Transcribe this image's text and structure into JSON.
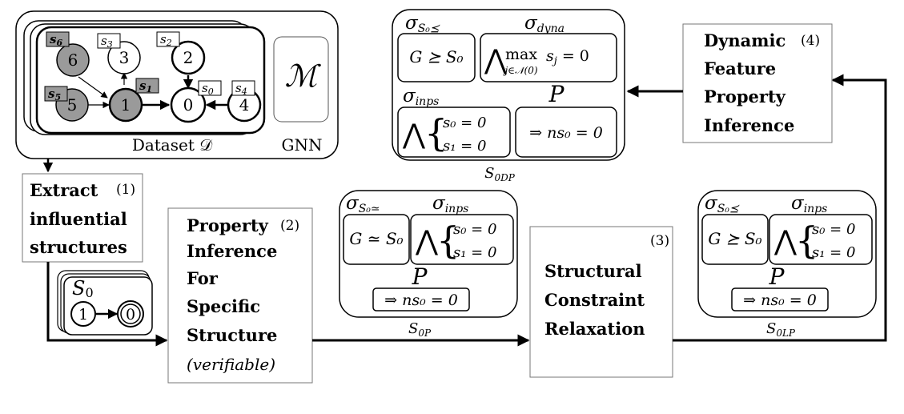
{
  "dataset": {
    "caption": "Dataset 𝒟",
    "model_symbol": "ℳ",
    "model_label": "GNN",
    "nodes": [
      {
        "id": "n6",
        "label": "6",
        "tag": "s6",
        "shaded": true
      },
      {
        "id": "n3",
        "label": "3",
        "tag": "s3",
        "shaded": false
      },
      {
        "id": "n2",
        "label": "2",
        "tag": "s2",
        "shaded": false
      },
      {
        "id": "n5",
        "label": "5",
        "tag": "s5",
        "shaded": true
      },
      {
        "id": "n1",
        "label": "1",
        "tag": "s1",
        "shaded": true
      },
      {
        "id": "n0",
        "label": "0",
        "tag": "s0",
        "shaded": false
      },
      {
        "id": "n4",
        "label": "4",
        "tag": "s4",
        "shaded": false
      }
    ]
  },
  "steps": {
    "extract": {
      "lines": [
        "Extract",
        "influential",
        "structures"
      ],
      "num": "(1)"
    },
    "specific": {
      "lines": [
        "Property",
        "Inference",
        "For",
        "Specific",
        "Structure"
      ],
      "italic": "(verifiable)",
      "num": "(2)"
    },
    "relax": {
      "lines": [
        "Structural",
        "Constraint",
        "Relaxation"
      ],
      "num": "(3)"
    },
    "dynamic": {
      "lines": [
        "Dynamic",
        "Feature",
        "Property",
        "Inference"
      ],
      "num": "(4)"
    }
  },
  "structure": {
    "label": "S",
    "sub": "0",
    "nodes": [
      "1",
      "0"
    ]
  },
  "props": {
    "p": {
      "sigma_struct": "σ",
      "sigma_struct_sub": "S₀≃",
      "sigma_inps": "σ",
      "sigma_inps_sub": "inps",
      "struct_formula": "G ≃ S₀",
      "inps_lines": [
        "s₀ = 0",
        "s₁ = 0"
      ],
      "p_label": "P",
      "p_formula": "⇒ ns₀ = 0",
      "caption": "S",
      "caption_sub": "0P"
    },
    "lp": {
      "sigma_struct": "σ",
      "sigma_struct_sub": "S₀⪯",
      "sigma_inps": "σ",
      "sigma_inps_sub": "inps",
      "struct_formula": "G ⪰ S₀",
      "inps_lines": [
        "s₀ = 0",
        "s₁ = 0"
      ],
      "p_label": "P",
      "p_formula": "⇒ ns₀ = 0",
      "caption": "S",
      "caption_sub": "0LP"
    },
    "dp": {
      "sigma_struct": "σ",
      "sigma_struct_sub": "S₀⪯",
      "sigma_dyna": "σ",
      "sigma_dyna_sub": "dyna",
      "struct_formula": "G ⪰ S₀",
      "dyna_formula": "max",
      "dyna_subscript": "j∈𝒩(0)",
      "dyna_rhs": "s",
      "dyna_rhs_sub": "j",
      "dyna_eq": " = 0",
      "sigma_inps": "σ",
      "sigma_inps_sub": "inps",
      "inps_lines": [
        "s₀ = 0",
        "s₁ = 0"
      ],
      "p_label": "P",
      "p_formula": "⇒ ns₀ = 0",
      "caption": "S",
      "caption_sub": "0DP"
    }
  },
  "colors": {
    "shaded_node": "#9a9a9a",
    "tag_fill": "#9a9a9a",
    "stroke": "#000000"
  }
}
